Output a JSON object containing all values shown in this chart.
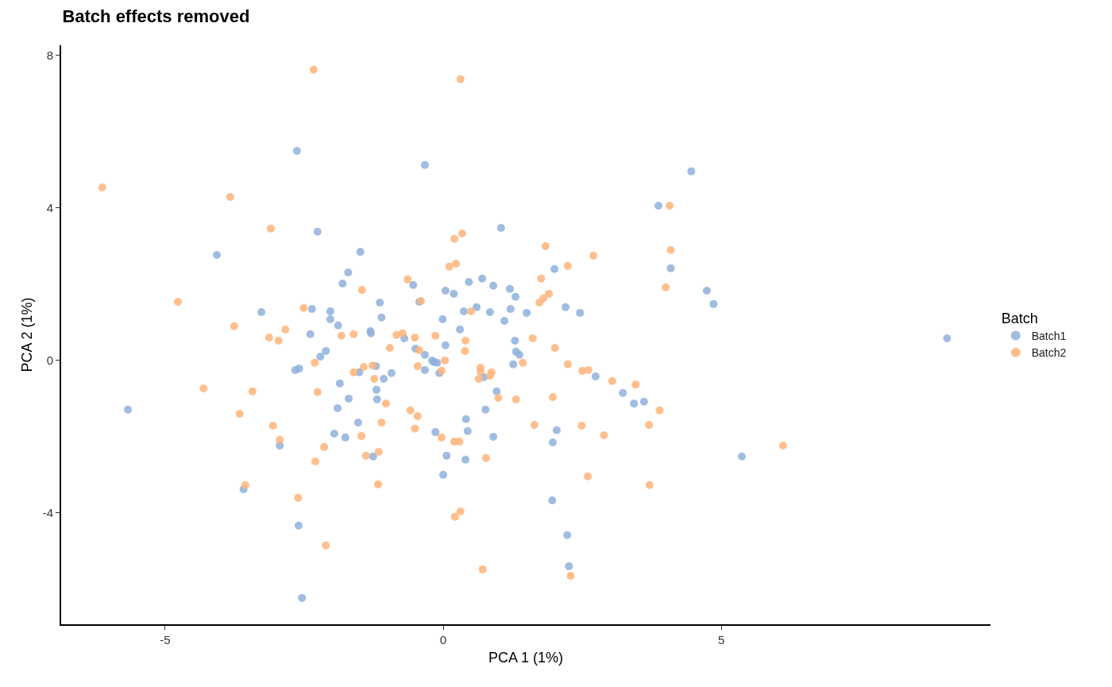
{
  "chart_data": {
    "type": "scatter",
    "title": "Batch effects removed",
    "xlabel": "PCA 1 (1%)",
    "ylabel": "PCA 2 (1%)",
    "legend_title": "Batch",
    "xlim": [
      -6.87,
      9.84
    ],
    "ylim": [
      -6.92,
      8.27
    ],
    "xticks": [
      {
        "value": -5,
        "label": "-5"
      },
      0,
      5
    ],
    "yticks": [
      {
        "value": -4,
        "label": "-4"
      },
      0,
      4,
      8
    ],
    "legend": "right",
    "marker": "circle",
    "series": [
      {
        "name": "Batch1",
        "color": "#8fb0da",
        "x": [
          -5.67,
          -4.07,
          -2.26,
          -1.49,
          -1.71,
          -1.81,
          -3.27,
          -2.36,
          -2.03,
          -2.03,
          -1.89,
          -2.39,
          -2.11,
          -2.21,
          -2.66,
          -2.59,
          -1.86,
          -1.7,
          -1.9,
          -1.51,
          -1.31,
          -1.3,
          -1.21,
          -1.14,
          -1.11,
          -1.2,
          -1.19,
          1.04,
          -0.54,
          -0.43,
          0.04,
          0.19,
          0.46,
          0.7,
          0.9,
          1.2,
          1.3,
          2.0,
          2.2,
          0.37,
          0.6,
          0.84,
          1.21,
          1.5,
          1.1,
          -0.01,
          0.3,
          -0.7,
          0.04,
          -0.5,
          -0.33,
          -0.2,
          -0.17,
          -0.11,
          -0.33,
          -0.07,
          1.29,
          1.31,
          1.37,
          1.26,
          -1.07,
          -0.93,
          0.73,
          0.96,
          0.76,
          -2.6,
          -1.53,
          -1.96,
          -1.76,
          -1.26,
          -2.94,
          -3.59,
          0.41,
          0.44,
          -0.14,
          0.9,
          0.06,
          0.4,
          0.0,
          2.04,
          1.97,
          1.96,
          -2.63,
          -2.54,
          -0.33,
          2.23,
          2.26,
          2.46,
          2.74,
          3.23,
          3.43,
          3.61,
          4.09,
          3.87,
          4.46,
          4.74,
          4.86,
          9.06,
          5.37
        ],
        "values": [
          -1.29,
          2.77,
          3.38,
          2.85,
          2.31,
          2.02,
          1.27,
          1.35,
          1.29,
          1.08,
          0.92,
          0.69,
          0.25,
          0.1,
          -0.25,
          -0.21,
          -0.6,
          -1.0,
          -1.25,
          -0.31,
          0.77,
          0.71,
          -0.15,
          1.52,
          1.13,
          -0.77,
          -1.02,
          3.48,
          1.98,
          1.54,
          1.83,
          1.75,
          2.06,
          2.15,
          1.96,
          1.88,
          1.67,
          2.4,
          1.4,
          1.29,
          1.4,
          1.27,
          1.35,
          1.25,
          1.04,
          1.08,
          0.81,
          0.58,
          0.4,
          0.31,
          0.15,
          0.0,
          -0.04,
          -0.06,
          -0.25,
          -0.33,
          0.52,
          0.23,
          0.15,
          -0.1,
          -0.48,
          -0.33,
          -0.44,
          -0.81,
          -1.29,
          -4.33,
          -1.63,
          -1.92,
          -2.02,
          -2.52,
          -2.23,
          -3.38,
          -1.54,
          -1.85,
          -1.88,
          -2.0,
          -2.5,
          -2.6,
          -3.0,
          -1.83,
          -2.15,
          -3.67,
          5.5,
          -6.23,
          5.13,
          -4.58,
          -5.4,
          1.25,
          -0.42,
          -0.85,
          -1.13,
          -1.08,
          2.42,
          4.06,
          4.96,
          1.83,
          1.48,
          0.58,
          -2.52
        ]
      },
      {
        "name": "Batch2",
        "color": "#ffb479",
        "x": [
          -6.13,
          -3.83,
          -3.1,
          -4.77,
          -3.76,
          -2.84,
          -3.13,
          -2.96,
          -2.51,
          -1.46,
          -1.83,
          -1.61,
          -2.31,
          -1.43,
          -1.27,
          -1.61,
          -1.24,
          -4.31,
          -3.43,
          -2.26,
          -3.66,
          -3.06,
          -2.94,
          -2.14,
          -2.3,
          -3.56,
          -2.61,
          -2.11,
          -1.47,
          -1.39,
          -1.16,
          -1.17,
          -1.11,
          -1.03,
          -0.59,
          -0.46,
          -0.51,
          -0.03,
          0.2,
          0.29,
          0.77,
          0.31,
          0.21,
          1.64,
          0.34,
          0.2,
          0.23,
          0.11,
          -0.64,
          1.84,
          2.24,
          1.76,
          1.9,
          1.8,
          1.73,
          -0.4,
          0.5,
          -0.84,
          -0.73,
          -0.51,
          -0.14,
          0.4,
          0.39,
          1.61,
          2.01,
          2.24,
          -0.96,
          -0.43,
          0.03,
          -0.46,
          -0.03,
          0.67,
          0.67,
          0.64,
          0.87,
          0.84,
          0.99,
          1.31,
          1.97,
          1.43,
          -2.33,
          0.31,
          0.71,
          2.29,
          2.6,
          3.71,
          6.11,
          3.7,
          3.89,
          3.46,
          3.04,
          2.7,
          4.07,
          4.09,
          4.0,
          2.5,
          2.61,
          2.89,
          2.49
        ],
        "values": [
          4.54,
          4.29,
          3.46,
          1.54,
          0.9,
          0.81,
          0.6,
          0.52,
          1.38,
          1.85,
          0.65,
          0.69,
          -0.06,
          -0.17,
          -0.13,
          -0.31,
          -0.48,
          -0.73,
          -0.81,
          -0.83,
          -1.4,
          -1.71,
          -2.08,
          -2.27,
          -2.65,
          -3.27,
          -3.6,
          -4.85,
          -1.98,
          -2.5,
          -2.4,
          -3.25,
          -1.63,
          -1.13,
          -1.31,
          -1.46,
          -1.79,
          -2.02,
          -2.13,
          -2.13,
          -2.56,
          -3.96,
          -4.1,
          -1.69,
          3.33,
          3.19,
          2.54,
          2.46,
          2.13,
          3.0,
          2.48,
          2.15,
          1.75,
          1.63,
          1.52,
          1.56,
          1.29,
          0.67,
          0.71,
          0.6,
          0.65,
          0.52,
          0.25,
          0.58,
          0.33,
          -0.1,
          0.33,
          0.27,
          0.0,
          -0.15,
          -0.27,
          -0.19,
          -0.29,
          -0.48,
          -0.31,
          -0.4,
          -0.98,
          -1.02,
          -0.96,
          -0.06,
          7.63,
          7.38,
          -5.48,
          -5.65,
          -3.04,
          -3.27,
          -2.23,
          -1.69,
          -1.31,
          -0.63,
          -0.54,
          2.75,
          4.06,
          2.9,
          1.92,
          -0.27,
          -0.25,
          -1.96,
          -1.71
        ]
      }
    ]
  }
}
